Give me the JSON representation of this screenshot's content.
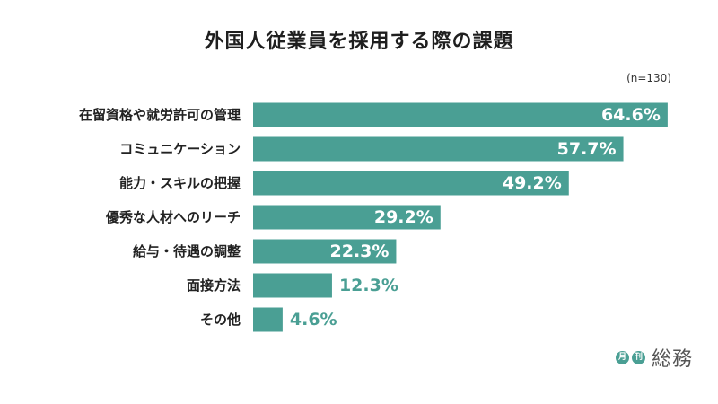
{
  "chart_data": {
    "type": "bar",
    "orientation": "horizontal",
    "title": "外国人従業員を採用する際の課題",
    "note": "(n=130)",
    "categories": [
      "在留資格や就労許可の管理",
      "コミュニケーション",
      "能力・スキルの把握",
      "優秀な人材へのリーチ",
      "給与・待遇の調整",
      "面接方法",
      "その他"
    ],
    "values": [
      64.6,
      57.7,
      49.2,
      29.2,
      22.3,
      12.3,
      4.6
    ],
    "value_labels": [
      "64.6%",
      "57.7%",
      "49.2%",
      "29.2%",
      "22.3%",
      "12.3%",
      "4.6%"
    ],
    "unit": "%",
    "xlim": [
      0,
      100
    ],
    "grid": false,
    "legend": "none",
    "bar_color": "#4a9f94"
  },
  "brand": {
    "badge1": "月",
    "badge2": "刊",
    "name": "総務",
    "color": "#4a9f94"
  }
}
